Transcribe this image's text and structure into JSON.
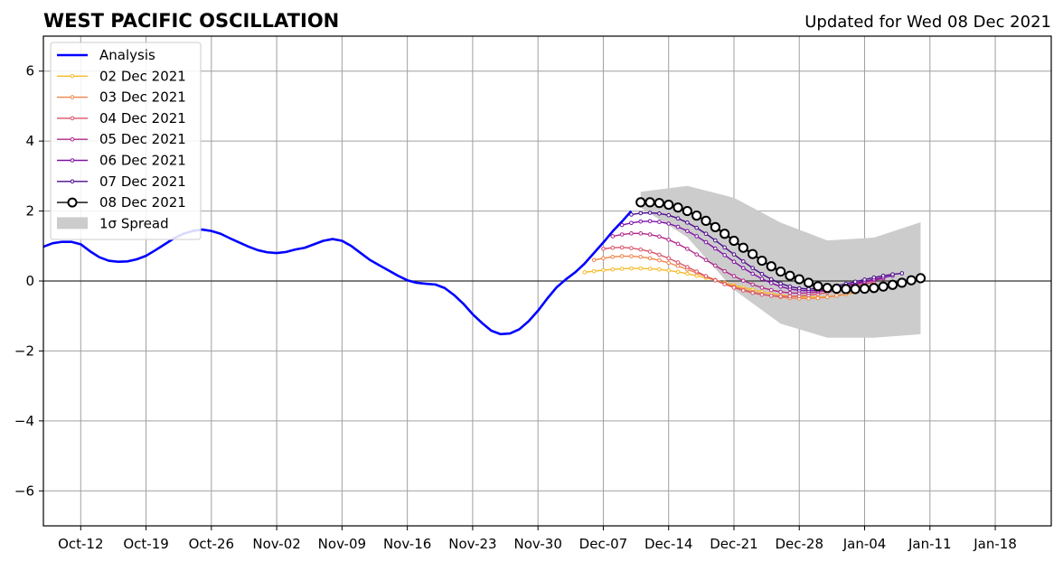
{
  "chart_data": {
    "type": "line",
    "title": "WEST PACIFIC OSCILLATION",
    "subtitle": "Updated for Wed 08 Dec 2021",
    "xlabel": "",
    "ylabel": "",
    "xlim": [
      "2021-10-08",
      "2022-01-24"
    ],
    "ylim": [
      -7,
      7
    ],
    "x_ticks": [
      "Oct-12",
      "Oct-19",
      "Oct-26",
      "Nov-02",
      "Nov-09",
      "Nov-16",
      "Nov-23",
      "Nov-30",
      "Dec-07",
      "Dec-14",
      "Dec-21",
      "Dec-28",
      "Jan-04",
      "Jan-11",
      "Jan-18"
    ],
    "x_tick_dates": [
      "2021-10-12",
      "2021-10-19",
      "2021-10-26",
      "2021-11-02",
      "2021-11-09",
      "2021-11-16",
      "2021-11-23",
      "2021-11-30",
      "2021-12-07",
      "2021-12-14",
      "2021-12-21",
      "2021-12-28",
      "2022-01-04",
      "2022-01-11",
      "2022-01-18"
    ],
    "y_ticks": [
      -6,
      -4,
      -2,
      0,
      2,
      4,
      6
    ],
    "y_tick_labels": [
      "−6",
      "−4",
      "−2",
      "0",
      "2",
      "4",
      "6"
    ],
    "grid": true,
    "legend_position": "top-left",
    "analysis": {
      "name": "Analysis",
      "color": "#0000ff",
      "points": [
        [
          "2021-10-08",
          0.98
        ],
        [
          "2021-10-09",
          1.08
        ],
        [
          "2021-10-10",
          1.12
        ],
        [
          "2021-10-11",
          1.12
        ],
        [
          "2021-10-12",
          1.05
        ],
        [
          "2021-10-13",
          0.85
        ],
        [
          "2021-10-14",
          0.68
        ],
        [
          "2021-10-15",
          0.58
        ],
        [
          "2021-10-16",
          0.55
        ],
        [
          "2021-10-17",
          0.56
        ],
        [
          "2021-10-18",
          0.62
        ],
        [
          "2021-10-19",
          0.72
        ],
        [
          "2021-10-20",
          0.88
        ],
        [
          "2021-10-21",
          1.05
        ],
        [
          "2021-10-22",
          1.22
        ],
        [
          "2021-10-23",
          1.35
        ],
        [
          "2021-10-24",
          1.43
        ],
        [
          "2021-10-25",
          1.47
        ],
        [
          "2021-10-26",
          1.43
        ],
        [
          "2021-10-27",
          1.35
        ],
        [
          "2021-10-28",
          1.22
        ],
        [
          "2021-10-29",
          1.1
        ],
        [
          "2021-10-30",
          0.98
        ],
        [
          "2021-10-31",
          0.88
        ],
        [
          "2021-11-01",
          0.82
        ],
        [
          "2021-11-02",
          0.8
        ],
        [
          "2021-11-03",
          0.83
        ],
        [
          "2021-11-04",
          0.9
        ],
        [
          "2021-11-05",
          0.95
        ],
        [
          "2021-11-06",
          1.05
        ],
        [
          "2021-11-07",
          1.15
        ],
        [
          "2021-11-08",
          1.2
        ],
        [
          "2021-11-09",
          1.15
        ],
        [
          "2021-11-10",
          1.0
        ],
        [
          "2021-11-11",
          0.8
        ],
        [
          "2021-11-12",
          0.6
        ],
        [
          "2021-11-13",
          0.45
        ],
        [
          "2021-11-14",
          0.3
        ],
        [
          "2021-11-15",
          0.15
        ],
        [
          "2021-11-16",
          0.02
        ],
        [
          "2021-11-17",
          -0.05
        ],
        [
          "2021-11-18",
          -0.08
        ],
        [
          "2021-11-19",
          -0.1
        ],
        [
          "2021-11-20",
          -0.2
        ],
        [
          "2021-11-21",
          -0.4
        ],
        [
          "2021-11-22",
          -0.65
        ],
        [
          "2021-11-23",
          -0.95
        ],
        [
          "2021-11-24",
          -1.2
        ],
        [
          "2021-11-25",
          -1.42
        ],
        [
          "2021-11-26",
          -1.52
        ],
        [
          "2021-11-27",
          -1.5
        ],
        [
          "2021-11-28",
          -1.38
        ],
        [
          "2021-11-29",
          -1.15
        ],
        [
          "2021-11-30",
          -0.85
        ],
        [
          "2021-12-01",
          -0.5
        ],
        [
          "2021-12-02",
          -0.18
        ],
        [
          "2021-12-03",
          0.05
        ],
        [
          "2021-12-04",
          0.25
        ],
        [
          "2021-12-05",
          0.5
        ],
        [
          "2021-12-06",
          0.8
        ],
        [
          "2021-12-07",
          1.1
        ],
        [
          "2021-12-08",
          1.42
        ],
        [
          "2021-12-09",
          1.7
        ],
        [
          "2021-12-10",
          2.0
        ]
      ]
    },
    "forecasts": [
      {
        "name": "02 Dec 2021",
        "color": "#f7ba2a",
        "start": "2021-12-05",
        "values": [
          0.25,
          0.28,
          0.31,
          0.33,
          0.35,
          0.36,
          0.36,
          0.35,
          0.33,
          0.3,
          0.26,
          0.21,
          0.15,
          0.09,
          0.02,
          -0.05,
          -0.12,
          -0.19,
          -0.25,
          -0.31,
          -0.36,
          -0.4,
          -0.43,
          -0.45,
          -0.46,
          -0.46,
          -0.45,
          -0.42,
          -0.38,
          -0.33
        ]
      },
      {
        "name": "03 Dec 2021",
        "color": "#f0844a",
        "start": "2021-12-06",
        "values": [
          0.6,
          0.65,
          0.69,
          0.71,
          0.71,
          0.69,
          0.65,
          0.59,
          0.52,
          0.43,
          0.33,
          0.23,
          0.13,
          0.03,
          -0.07,
          -0.16,
          -0.24,
          -0.31,
          -0.37,
          -0.42,
          -0.46,
          -0.49,
          -0.5,
          -0.5,
          -0.49,
          -0.46,
          -0.42,
          -0.37,
          -0.31,
          -0.25
        ]
      },
      {
        "name": "04 Dec 2021",
        "color": "#d9546a",
        "start": "2021-12-07",
        "values": [
          0.92,
          0.95,
          0.96,
          0.94,
          0.9,
          0.84,
          0.75,
          0.65,
          0.53,
          0.4,
          0.27,
          0.14,
          0.02,
          -0.09,
          -0.19,
          -0.27,
          -0.34,
          -0.39,
          -0.42,
          -0.44,
          -0.44,
          -0.43,
          -0.41,
          -0.37,
          -0.33,
          -0.27,
          -0.21,
          -0.15,
          -0.09,
          -0.03
        ]
      },
      {
        "name": "05 Dec 2021",
        "color": "#b0278a",
        "start": "2021-12-08",
        "values": [
          1.28,
          1.33,
          1.36,
          1.36,
          1.33,
          1.27,
          1.18,
          1.06,
          0.92,
          0.76,
          0.6,
          0.44,
          0.28,
          0.14,
          0.01,
          -0.1,
          -0.19,
          -0.26,
          -0.31,
          -0.34,
          -0.35,
          -0.34,
          -0.31,
          -0.27,
          -0.22,
          -0.16,
          -0.1,
          -0.04,
          0.02,
          0.07
        ]
      },
      {
        "name": "06 Dec 2021",
        "color": "#7e11a6",
        "start": "2021-12-09",
        "values": [
          1.6,
          1.66,
          1.7,
          1.71,
          1.69,
          1.64,
          1.55,
          1.43,
          1.28,
          1.11,
          0.93,
          0.74,
          0.55,
          0.37,
          0.21,
          0.06,
          -0.06,
          -0.16,
          -0.23,
          -0.27,
          -0.28,
          -0.27,
          -0.24,
          -0.19,
          -0.13,
          -0.07,
          -0.01,
          0.05,
          0.1,
          0.15
        ]
      },
      {
        "name": "07 Dec 2021",
        "color": "#4b0c8c",
        "start": "2021-12-10",
        "values": [
          1.9,
          1.94,
          1.95,
          1.93,
          1.88,
          1.79,
          1.67,
          1.52,
          1.35,
          1.16,
          0.96,
          0.76,
          0.56,
          0.37,
          0.2,
          0.05,
          -0.07,
          -0.16,
          -0.21,
          -0.23,
          -0.22,
          -0.19,
          -0.14,
          -0.08,
          -0.02,
          0.04,
          0.1,
          0.15,
          0.19,
          0.22
        ]
      },
      {
        "name": "08 Dec 2021",
        "color": "#000000",
        "start": "2021-12-11",
        "values": [
          2.25,
          2.25,
          2.23,
          2.18,
          2.1,
          2.0,
          1.87,
          1.72,
          1.54,
          1.35,
          1.15,
          0.95,
          0.77,
          0.58,
          0.42,
          0.27,
          0.15,
          0.05,
          -0.05,
          -0.15,
          -0.2,
          -0.22,
          -0.23,
          -0.23,
          -0.22,
          -0.2,
          -0.16,
          -0.11,
          -0.05,
          0.02,
          0.08
        ]
      }
    ],
    "spread": {
      "name": "1σ Spread",
      "color": "#cccccc",
      "x": [
        "2021-12-11",
        "2021-12-16",
        "2021-12-21",
        "2021-12-26",
        "2021-12-31",
        "2022-01-05",
        "2022-01-10"
      ],
      "upper": [
        2.55,
        2.72,
        2.38,
        1.67,
        1.16,
        1.24,
        1.68
      ],
      "lower": [
        2.1,
        1.25,
        -0.25,
        -1.22,
        -1.62,
        -1.62,
        -1.52
      ]
    }
  }
}
